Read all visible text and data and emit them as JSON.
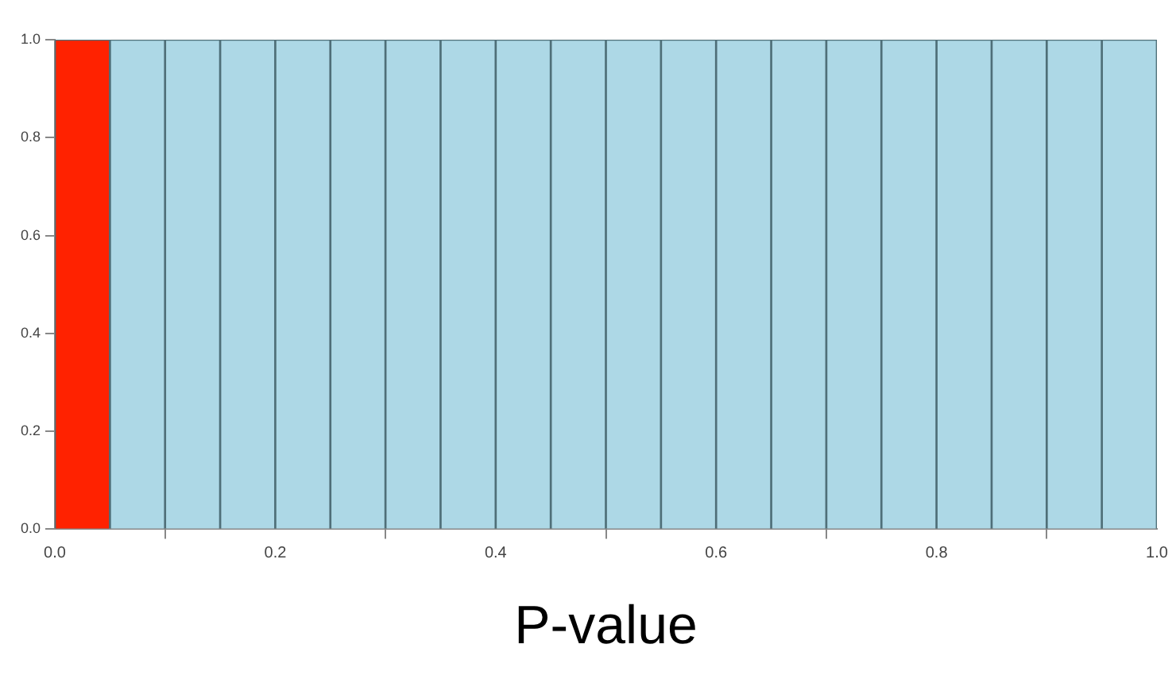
{
  "chart_data": {
    "type": "histogram",
    "xlabel": "P-value",
    "bins": [
      0,
      0.05,
      0.1,
      0.15,
      0.2,
      0.25,
      0.3,
      0.35,
      0.4,
      0.45,
      0.5,
      0.55,
      0.6,
      0.65,
      0.7,
      0.75,
      0.8,
      0.85,
      0.9,
      0.95,
      1
    ],
    "values": [
      1,
      1,
      1,
      1,
      1,
      1,
      1,
      1,
      1,
      1,
      1,
      1,
      1,
      1,
      1,
      1,
      1,
      1,
      1,
      1
    ],
    "colors": [
      "#ff2200",
      "#add8e6",
      "#add8e6",
      "#add8e6",
      "#add8e6",
      "#add8e6",
      "#add8e6",
      "#add8e6",
      "#add8e6",
      "#add8e6",
      "#add8e6",
      "#add8e6",
      "#add8e6",
      "#add8e6",
      "#add8e6",
      "#add8e6",
      "#add8e6",
      "#add8e6",
      "#add8e6",
      "#add8e6"
    ],
    "xlim": [
      0,
      1
    ],
    "xticks": [
      {
        "value": 0,
        "label": "0.0"
      },
      {
        "value": 0.2,
        "label": "0.2"
      },
      {
        "value": 0.4,
        "label": "0.4"
      },
      {
        "value": 0.6,
        "label": "0.6"
      },
      {
        "value": 0.8,
        "label": "0.8"
      },
      {
        "value": 1,
        "label": "1.0"
      }
    ],
    "ylim": [
      0,
      1
    ],
    "yticks": [
      {
        "value": 0,
        "label": "0.0"
      },
      {
        "value": 0.2,
        "label": "0.2"
      },
      {
        "value": 0.4,
        "label": "0.4"
      },
      {
        "value": 0.6,
        "label": "0.6"
      },
      {
        "value": 0.8,
        "label": "0.8"
      },
      {
        "value": 1,
        "label": "1.0"
      }
    ],
    "grid": false,
    "legend": false
  }
}
